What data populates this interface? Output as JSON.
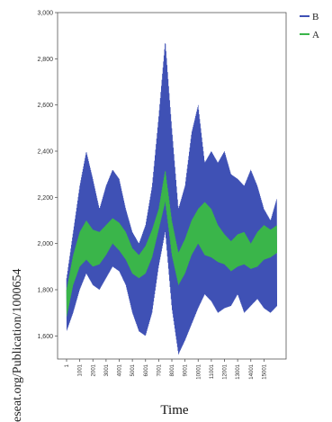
{
  "chart_data": {
    "type": "line",
    "title": "",
    "xlabel": "Time",
    "ylabel": "",
    "ylim": [
      1500,
      3000
    ],
    "xlim": [
      1,
      16000
    ],
    "y_ticks": [
      "1,600",
      "1,800",
      "2,000",
      "2,200",
      "2,400",
      "2,600",
      "2,800",
      "3,000"
    ],
    "y_tick_values": [
      1600,
      1800,
      2000,
      2200,
      2400,
      2600,
      2800,
      3000
    ],
    "x_ticks": [
      "1",
      "1001",
      "2001",
      "3001",
      "4001",
      "5001",
      "6001",
      "7001",
      "8001",
      "9001",
      "10001",
      "11001",
      "12001",
      "13001",
      "14001",
      "15001"
    ],
    "x_tick_values": [
      1,
      1001,
      2001,
      3001,
      4001,
      5001,
      6001,
      7001,
      8001,
      9001,
      10001,
      11001,
      12001,
      13001,
      14001,
      15001
    ],
    "grid": false,
    "legend_position": "top-right",
    "series": [
      {
        "name": "B",
        "color": "#3f51b5",
        "x": [
          1,
          500,
          1000,
          1500,
          2000,
          2500,
          3000,
          3500,
          4000,
          4500,
          5000,
          5500,
          6000,
          6500,
          7000,
          7500,
          8000,
          8500,
          9000,
          9500,
          10000,
          10500,
          11000,
          11500,
          12000,
          12500,
          13000,
          13500,
          14000,
          14500,
          15000,
          15500,
          16000
        ],
        "upper": [
          1850,
          2050,
          2250,
          2400,
          2280,
          2150,
          2250,
          2320,
          2280,
          2150,
          2050,
          2000,
          2080,
          2250,
          2550,
          2880,
          2500,
          2150,
          2250,
          2480,
          2600,
          2350,
          2400,
          2350,
          2400,
          2300,
          2280,
          2250,
          2320,
          2250,
          2150,
          2100,
          2200
        ],
        "lower": [
          1620,
          1700,
          1800,
          1870,
          1820,
          1800,
          1850,
          1900,
          1880,
          1820,
          1700,
          1620,
          1600,
          1700,
          1900,
          2050,
          1720,
          1520,
          1580,
          1650,
          1720,
          1780,
          1750,
          1700,
          1720,
          1730,
          1780,
          1700,
          1730,
          1760,
          1720,
          1700,
          1730
        ]
      },
      {
        "name": "A",
        "color": "#3ab54a",
        "x": [
          1,
          500,
          1000,
          1500,
          2000,
          2500,
          3000,
          3500,
          4000,
          4500,
          5000,
          5500,
          6000,
          6500,
          7000,
          7500,
          8000,
          8500,
          9000,
          9500,
          10000,
          10500,
          11000,
          11500,
          12000,
          12500,
          13000,
          13500,
          14000,
          14500,
          15000,
          15500,
          16000
        ],
        "upper": [
          1800,
          1950,
          2050,
          2100,
          2060,
          2050,
          2080,
          2110,
          2090,
          2050,
          1980,
          1950,
          1990,
          2060,
          2150,
          2320,
          2100,
          1960,
          2020,
          2100,
          2150,
          2180,
          2150,
          2080,
          2040,
          2010,
          2040,
          2050,
          2000,
          2050,
          2080,
          2060,
          2080
        ],
        "lower": [
          1680,
          1820,
          1900,
          1930,
          1900,
          1910,
          1950,
          2000,
          1970,
          1930,
          1870,
          1850,
          1870,
          1940,
          2060,
          2180,
          1950,
          1820,
          1870,
          1950,
          2000,
          1950,
          1940,
          1920,
          1910,
          1880,
          1900,
          1910,
          1890,
          1900,
          1930,
          1940,
          1960
        ]
      }
    ]
  },
  "legend": [
    {
      "label": "B",
      "color": "#3f51b5"
    },
    {
      "label": "A",
      "color": "#3ab54a"
    }
  ],
  "watermark": "eseat.org/Publication/1000654"
}
